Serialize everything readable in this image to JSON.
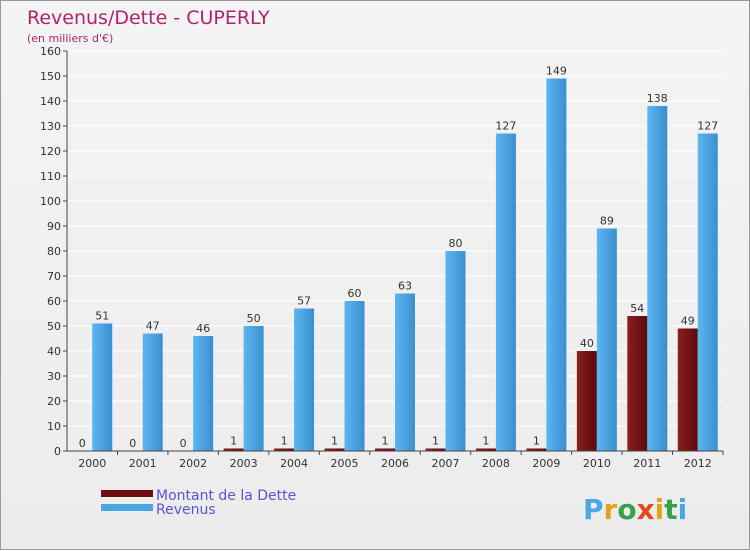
{
  "chart_data": {
    "type": "bar",
    "title": "Revenus/Dette - CUPERLY",
    "subtitle": "(en milliers d'€)",
    "categories": [
      "2000",
      "2001",
      "2002",
      "2003",
      "2004",
      "2005",
      "2006",
      "2007",
      "2008",
      "2009",
      "2010",
      "2011",
      "2012"
    ],
    "series": [
      {
        "name": "Montant de la Dette",
        "color": "#6b0f10",
        "values": [
          0,
          0,
          0,
          1,
          1,
          1,
          1,
          1,
          1,
          1,
          40,
          54,
          49
        ]
      },
      {
        "name": "Revenus",
        "color": "#4aa6e6",
        "values": [
          51,
          47,
          46,
          50,
          57,
          60,
          63,
          80,
          127,
          149,
          89,
          138,
          127
        ]
      }
    ],
    "ylim": [
      0,
      160
    ],
    "yticks": [
      0,
      10,
      20,
      30,
      40,
      50,
      60,
      70,
      80,
      90,
      100,
      110,
      120,
      130,
      140,
      150,
      160
    ],
    "grid": true,
    "legend_position": "bottom-left"
  },
  "logo": {
    "text": "Proxiti"
  }
}
